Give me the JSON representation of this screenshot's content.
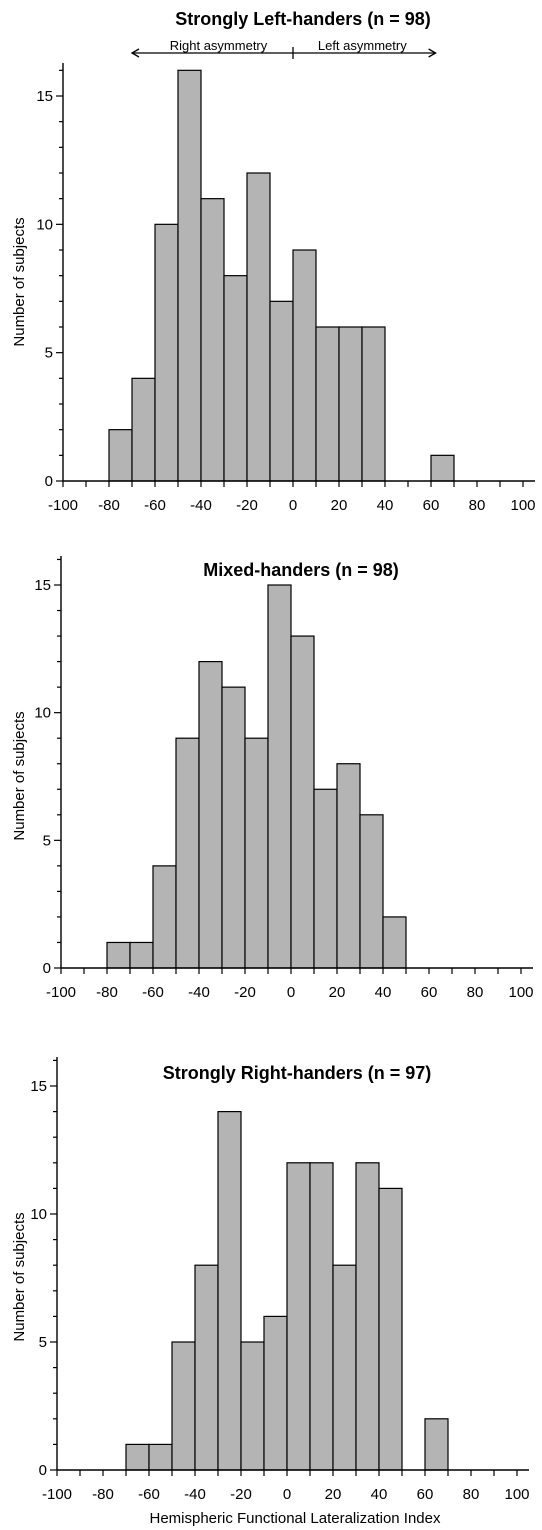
{
  "chart_data": [
    {
      "type": "bar",
      "title": "Strongly Left-handers (n = 98)",
      "xlabel": "",
      "ylabel": "Number of subjects",
      "bin_width": 10,
      "x": [
        -80,
        -70,
        -60,
        -50,
        -40,
        -30,
        -20,
        -10,
        0,
        10,
        20,
        30,
        40,
        50,
        60,
        70,
        80,
        90
      ],
      "values": [
        2,
        4,
        10,
        16,
        11,
        8,
        12,
        7,
        9,
        6,
        6,
        6,
        0,
        0,
        1,
        0,
        0,
        0
      ],
      "xlim": [
        -100,
        100
      ],
      "ylim": [
        0,
        16
      ],
      "xticks": [
        -100,
        -80,
        -60,
        -40,
        -20,
        0,
        20,
        40,
        60,
        80,
        100
      ],
      "yticks": [
        0,
        5,
        10,
        15
      ],
      "annotations": {
        "left_arrow": "Right asymmetry",
        "right_arrow": "Left asymmetry"
      },
      "grid": false
    },
    {
      "type": "bar",
      "title": "Mixed-handers (n = 98)",
      "xlabel": "",
      "ylabel": "Number of subjects",
      "bin_width": 10,
      "x": [
        -80,
        -70,
        -60,
        -50,
        -40,
        -30,
        -20,
        -10,
        0,
        10,
        20,
        30,
        40,
        50,
        60,
        70,
        80,
        90
      ],
      "values": [
        1,
        1,
        4,
        9,
        12,
        11,
        9,
        15,
        13,
        7,
        8,
        6,
        2,
        0,
        0,
        0,
        0,
        0
      ],
      "xlim": [
        -100,
        100
      ],
      "ylim": [
        0,
        16
      ],
      "xticks": [
        -100,
        -80,
        -60,
        -40,
        -20,
        0,
        20,
        40,
        60,
        80,
        100
      ],
      "yticks": [
        0,
        5,
        10,
        15
      ],
      "grid": false
    },
    {
      "type": "bar",
      "title": "Strongly Right-handers (n = 97)",
      "xlabel": "Hemispheric Functional Lateralization Index",
      "ylabel": "Number of subjects",
      "bin_width": 10,
      "x": [
        -80,
        -70,
        -60,
        -50,
        -40,
        -30,
        -20,
        -10,
        0,
        10,
        20,
        30,
        40,
        50,
        60,
        70,
        80,
        90
      ],
      "values": [
        0,
        1,
        1,
        5,
        8,
        14,
        5,
        6,
        12,
        12,
        8,
        12,
        11,
        0,
        2,
        0,
        0,
        0
      ],
      "xlim": [
        -100,
        100
      ],
      "ylim": [
        0,
        16
      ],
      "xticks": [
        -100,
        -80,
        -60,
        -40,
        -20,
        0,
        20,
        40,
        60,
        80,
        100
      ],
      "yticks": [
        0,
        5,
        10,
        15
      ],
      "grid": false
    }
  ]
}
